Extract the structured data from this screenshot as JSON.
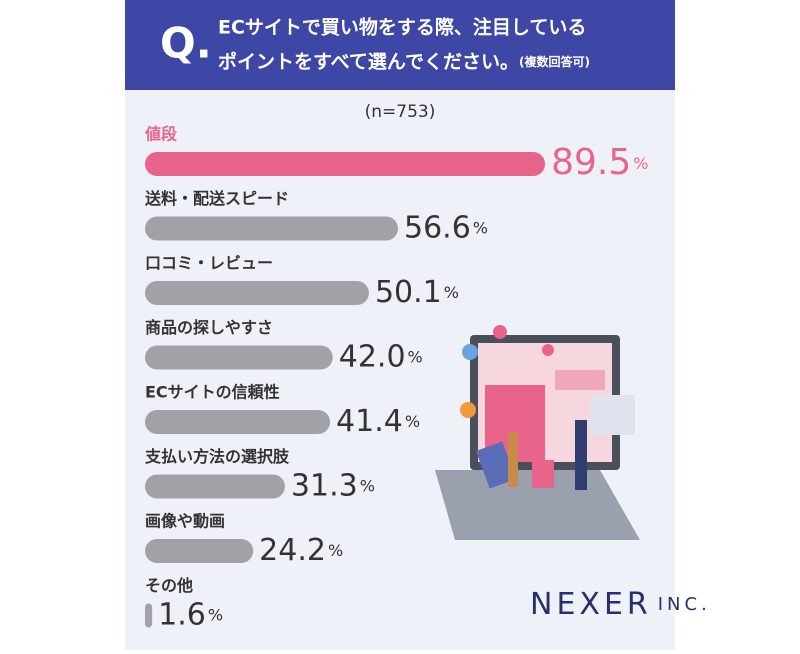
{
  "chart_data": {
    "type": "hbar",
    "question_label": "Q.",
    "title": [
      "ECサイトで買い物をする際、注目している",
      "ポイントをすべて選んでください。"
    ],
    "title_note": "(複数回答可)",
    "subtitle": "(n=753)",
    "categories": [
      "値段",
      "送料・配送スピード",
      "口コミ・レビュー",
      "商品の探しやすさ",
      "ECサイトの信頼性",
      "支払い方法の選択肢",
      "画像や動画",
      "その他"
    ],
    "values": [
      89.5,
      56.6,
      50.1,
      42.0,
      41.4,
      31.3,
      24.2,
      1.6
    ],
    "value_labels": [
      "89.5",
      "56.6",
      "50.1",
      "42.0",
      "41.4",
      "31.3",
      "24.2",
      "1.6"
    ],
    "unit": "%",
    "colors": [
      "#e8648a",
      "#a1a2a8",
      "#a1a2a8",
      "#a1a2a8",
      "#a1a2a8",
      "#a1a2a8",
      "#a1a2a8",
      "#a1a2a8"
    ],
    "xlim": [
      0,
      100
    ],
    "logo": "NEXER",
    "logo_suffix": "INC."
  }
}
